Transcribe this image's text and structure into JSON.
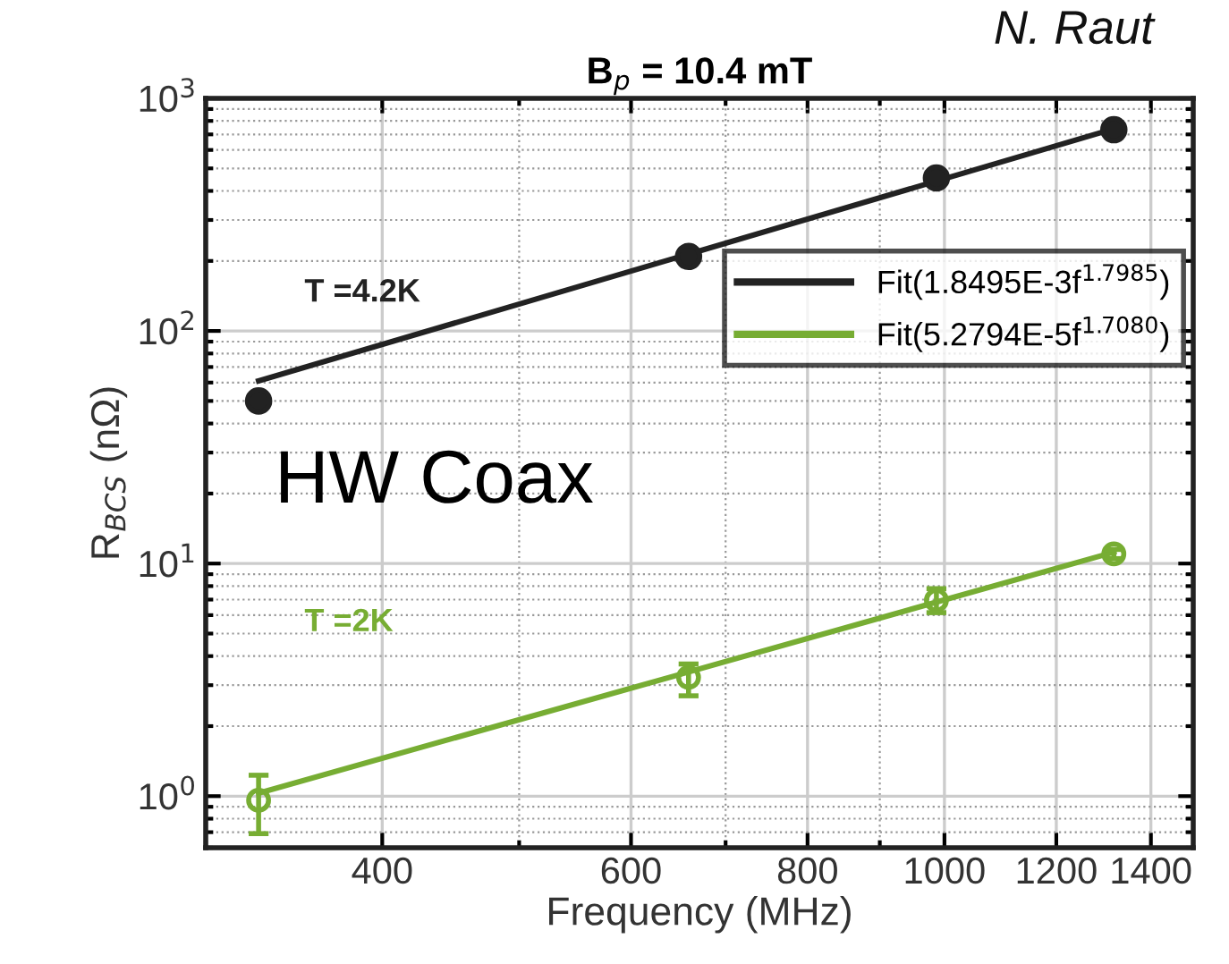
{
  "chart_data": {
    "type": "line",
    "title": "B$_{p}$ = 10.4 mT",
    "xlabel": "Frequency (MHz)",
    "ylabel": "R$_{BCS}$ (nΩ)",
    "log": "xy",
    "xlim": [
      300,
      1500
    ],
    "xticks": [
      400,
      600,
      800,
      1000,
      1200,
      1400
    ],
    "ylim": [
      0.6,
      1000
    ],
    "yticks": [
      {
        "value": 1,
        "label": "10$^{0}$"
      },
      {
        "value": 10,
        "label": "10$^{1}$"
      },
      {
        "value": 100,
        "label": "10$^{2}$"
      },
      {
        "value": 1000,
        "label": "10$^{3}$"
      }
    ],
    "grid": true,
    "legend": "right",
    "series": [
      {
        "type": "scatter",
        "marker": "circle",
        "color": "#222222",
        "x": [
          327,
          659,
          987,
          1318
        ],
        "values": [
          50,
          209,
          455,
          733
        ]
      },
      {
        "name": "Fit(1.8495E-3f$^{1.7985}$)",
        "color": "#222222",
        "x": [
          327,
          1318
        ],
        "values": [
          61,
          740
        ]
      },
      {
        "type": "scatter",
        "marker": "circle",
        "color": "#77ad33",
        "x": [
          327,
          659,
          987,
          1318
        ],
        "values": [
          0.96,
          3.24,
          6.95,
          11.0
        ],
        "errors": [
          [
            0.69,
            1.23
          ],
          [
            2.7,
            3.7
          ],
          [
            6.15,
            7.8
          ],
          [
            10.5,
            11.5
          ]
        ]
      },
      {
        "name": "Fit(5.2794E-5f$^{1.7080}$)",
        "color": "#77ad33",
        "x": [
          327,
          1318
        ],
        "values": [
          1.03,
          11.2
        ]
      }
    ],
    "annotations": [
      "T =4.2K",
      "T =2K",
      "HW Coax",
      "N. Raut"
    ]
  }
}
